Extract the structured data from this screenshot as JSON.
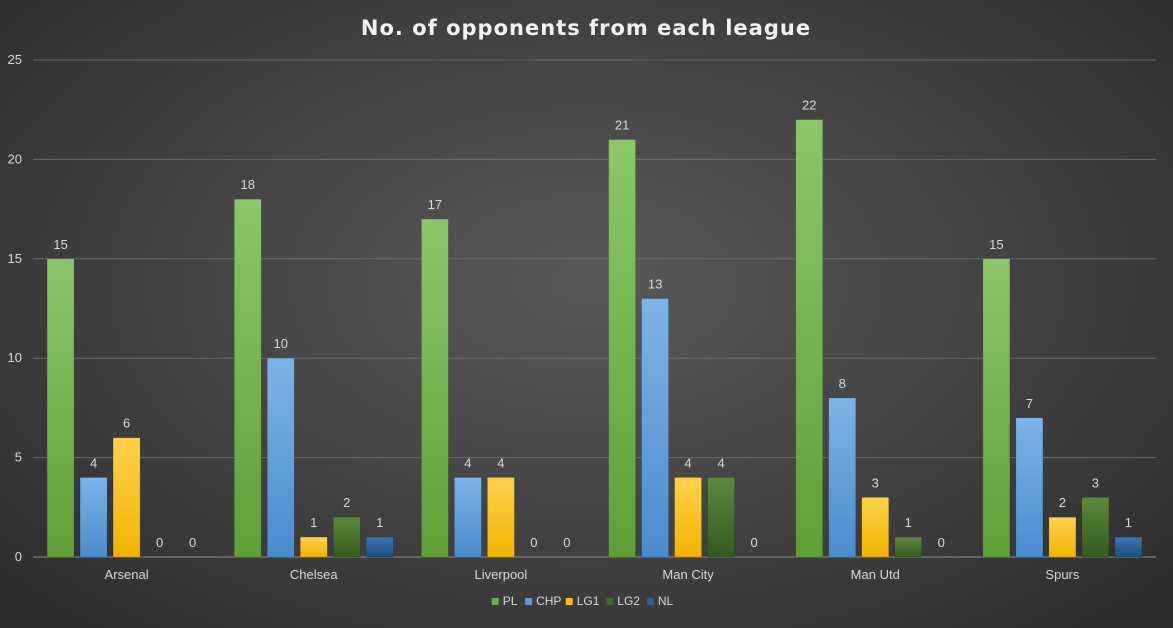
{
  "chart_data": {
    "type": "bar",
    "title": "No. of opponents from each league",
    "xlabel": "",
    "ylabel": "",
    "ylim": [
      0,
      25
    ],
    "yticks": [
      0,
      5,
      10,
      15,
      20,
      25
    ],
    "grid": true,
    "legend_position": "bottom",
    "categories": [
      "Arsenal",
      "Chelsea",
      "Liverpool",
      "Man City",
      "Man Utd",
      "Spurs"
    ],
    "series": [
      {
        "name": "PL",
        "color": "#70ad47",
        "values": [
          15,
          18,
          17,
          21,
          22,
          15
        ]
      },
      {
        "name": "CHP",
        "color": "#5b9bd5",
        "values": [
          4,
          10,
          4,
          13,
          8,
          7
        ]
      },
      {
        "name": "LG1",
        "color": "#ffc000",
        "values": [
          6,
          1,
          4,
          4,
          3,
          2
        ]
      },
      {
        "name": "LG2",
        "color": "#43682b",
        "values": [
          0,
          2,
          0,
          4,
          1,
          3
        ]
      },
      {
        "name": "NL",
        "color": "#255e91",
        "values": [
          0,
          1,
          0,
          0,
          0,
          1
        ]
      }
    ],
    "data_labels": true
  }
}
